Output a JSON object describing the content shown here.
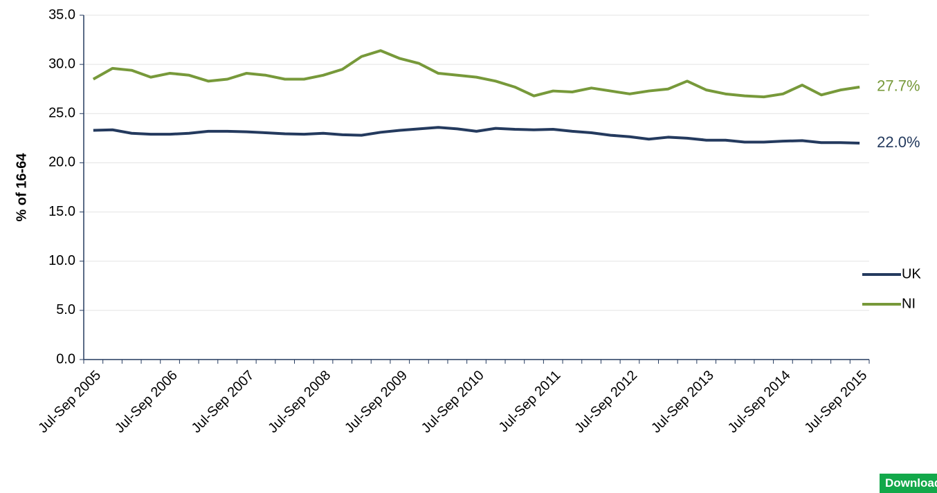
{
  "chart_data": {
    "type": "line",
    "y_label": "% of 16-64",
    "categories": [
      "Jul-Sep 2005",
      null,
      null,
      null,
      "Jul-Sep 2006",
      null,
      null,
      null,
      "Jul-Sep 2007",
      null,
      null,
      null,
      "Jul-Sep 2008",
      null,
      null,
      null,
      "Jul-Sep 2009",
      null,
      null,
      null,
      "Jul-Sep 2010",
      null,
      null,
      null,
      "Jul-Sep 2011",
      null,
      null,
      null,
      "Jul-Sep 2012",
      null,
      null,
      null,
      "Jul-Sep 2013",
      null,
      null,
      null,
      "Jul-Sep 2014",
      null,
      null,
      null,
      "Jul-Sep 2015"
    ],
    "series": [
      {
        "name": "NI",
        "color": "#77993a",
        "values": [
          28.5,
          29.6,
          29.4,
          28.7,
          29.1,
          28.9,
          28.3,
          28.5,
          29.1,
          28.9,
          28.5,
          28.5,
          28.9,
          29.5,
          30.8,
          31.4,
          30.6,
          30.1,
          29.1,
          28.9,
          28.7,
          28.3,
          27.7,
          26.8,
          27.3,
          27.2,
          27.6,
          27.3,
          27.0,
          27.3,
          27.5,
          28.3,
          27.4,
          27.0,
          26.8,
          26.7,
          27.0,
          27.9,
          26.9,
          27.4,
          27.7
        ],
        "value_labels": [
          null,
          null,
          null,
          null,
          null,
          null,
          null,
          null,
          null,
          null,
          null,
          null,
          null,
          null,
          null,
          null,
          null,
          null,
          null,
          null,
          null,
          null,
          null,
          null,
          null,
          null,
          null,
          null,
          null,
          null,
          null,
          null,
          null,
          null,
          null,
          null,
          null,
          null,
          null,
          null,
          "27.7%"
        ]
      },
      {
        "name": "UK",
        "color": "#243a5e",
        "values": [
          23.3,
          23.35,
          23.0,
          22.9,
          22.9,
          23.0,
          23.2,
          23.2,
          23.15,
          23.05,
          22.95,
          22.9,
          23.0,
          22.85,
          22.8,
          23.1,
          23.3,
          23.45,
          23.6,
          23.45,
          23.2,
          23.5,
          23.4,
          23.35,
          23.4,
          23.2,
          23.05,
          22.8,
          22.65,
          22.4,
          22.6,
          22.5,
          22.3,
          22.3,
          22.1,
          22.1,
          22.2,
          22.25,
          22.05,
          22.05,
          22.0
        ],
        "value_labels": [
          null,
          null,
          null,
          null,
          null,
          null,
          null,
          null,
          null,
          null,
          null,
          null,
          null,
          null,
          null,
          null,
          null,
          null,
          null,
          null,
          null,
          null,
          null,
          null,
          null,
          null,
          null,
          null,
          null,
          null,
          null,
          null,
          null,
          null,
          null,
          null,
          null,
          null,
          null,
          null,
          "22.0%"
        ]
      }
    ],
    "legend_order": [
      "UK",
      "NI"
    ],
    "legend_position": "right",
    "ylim": [
      0,
      35
    ],
    "yticks": [
      {
        "value": 0,
        "label": "0.0"
      },
      {
        "value": 5,
        "label": "5.0"
      },
      {
        "value": 10,
        "label": "10.0"
      },
      {
        "value": 15,
        "label": "15.0"
      },
      {
        "value": 20,
        "label": "20.0"
      },
      {
        "value": 25,
        "label": "25.0"
      },
      {
        "value": 30,
        "label": "30.0"
      },
      {
        "value": 35,
        "label": "35.0"
      }
    ],
    "grid": true
  },
  "download_button": "Download in excel"
}
